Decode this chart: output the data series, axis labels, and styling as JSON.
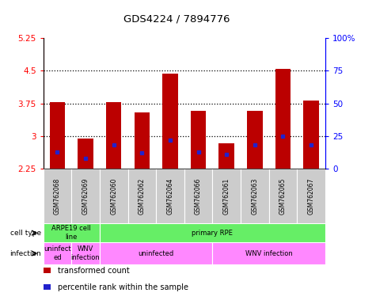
{
  "title": "GDS4224 / 7894776",
  "samples": [
    "GSM762068",
    "GSM762069",
    "GSM762060",
    "GSM762062",
    "GSM762064",
    "GSM762066",
    "GSM762061",
    "GSM762063",
    "GSM762065",
    "GSM762067"
  ],
  "transformed_count": [
    3.78,
    2.95,
    3.78,
    3.55,
    4.43,
    3.58,
    2.84,
    3.58,
    4.55,
    3.82
  ],
  "percentile_rank_pct": [
    13,
    8,
    18,
    12,
    22,
    13,
    11,
    18,
    25,
    18
  ],
  "ylim": [
    2.25,
    5.25
  ],
  "yticks": [
    2.25,
    3.0,
    3.75,
    4.5,
    5.25
  ],
  "ytick_labels": [
    "2.25",
    "3",
    "3.75",
    "4.5",
    "5.25"
  ],
  "y2ticks": [
    0,
    25,
    50,
    75,
    100
  ],
  "y2tick_labels": [
    "0",
    "25",
    "50",
    "75",
    "100%"
  ],
  "bar_color": "#bb0000",
  "percentile_color": "#2222cc",
  "bar_bottom": 2.25,
  "dotted_lines": [
    3.0,
    3.75,
    4.5
  ],
  "cell_type_groups": [
    {
      "text": "ARPE19 cell\nline",
      "start": 0,
      "end": 2,
      "color": "#66ee66"
    },
    {
      "text": "primary RPE",
      "start": 2,
      "end": 10,
      "color": "#66ee66"
    }
  ],
  "infection_groups": [
    {
      "text": "uninfect\ned",
      "start": 0,
      "end": 1
    },
    {
      "text": "WNV\ninfection",
      "start": 1,
      "end": 2
    },
    {
      "text": "uninfected",
      "start": 2,
      "end": 6
    },
    {
      "text": "WNV infection",
      "start": 6,
      "end": 10
    }
  ],
  "cell_type_color": "#66ee66",
  "infection_color": "#ff88ff",
  "legend_items": [
    {
      "color": "#bb0000",
      "label": "transformed count"
    },
    {
      "color": "#2222cc",
      "label": "percentile rank within the sample"
    }
  ],
  "label_bg": "#d8d8d8",
  "plot_bg": "#ffffff"
}
